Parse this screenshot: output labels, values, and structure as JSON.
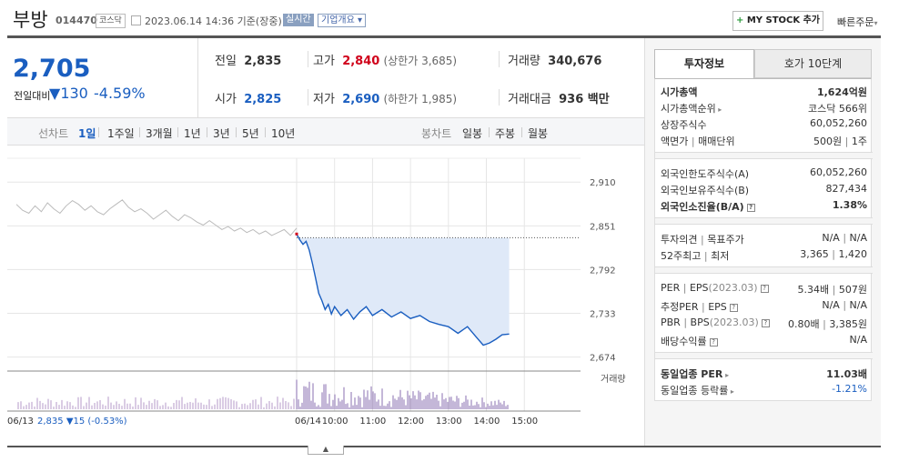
{
  "header": {
    "stock_name": "부방",
    "stock_code": "014470",
    "market_badge": "코스닥",
    "date_text": "2023.06.14 14:36 기준(장중)",
    "realtime_label": "실시간",
    "overview_label": "기업개요",
    "mystock_label": "MY STOCK 추가",
    "quick_order_label": "빠른주문"
  },
  "price": {
    "current": "2,705",
    "change_label": "전일대비",
    "change_value": "130",
    "change_rate": "-4.59%"
  },
  "quote": {
    "prev_close_label": "전일",
    "prev_close": "2,835",
    "high_label": "고가",
    "high": "2,840",
    "upper_limit": "(상한가 3,685)",
    "volume_label": "거래량",
    "volume": "340,676",
    "open_label": "시가",
    "open": "2,825",
    "low_label": "저가",
    "low": "2,690",
    "lower_limit": "(하한가 1,985)",
    "amount_label": "거래대금",
    "amount": "936 백만"
  },
  "range_bar": {
    "line_chart_label": "선차트",
    "ranges": [
      "1일",
      "1주일",
      "3개월",
      "1년",
      "3년",
      "5년",
      "10년"
    ],
    "selected": "1일",
    "candle_label": "봉차트",
    "candles": [
      "일봉",
      "주봉",
      "월봉"
    ]
  },
  "chart_data": {
    "type": "line",
    "title": "",
    "x_axis_labels": [
      "06/13",
      "06/14",
      "10:00",
      "11:00",
      "12:00",
      "13:00",
      "14:00",
      "15:00"
    ],
    "y_ticks": [
      2910,
      2851,
      2792,
      2733,
      2674
    ],
    "ylim": [
      2660,
      2925
    ],
    "prev_close": 2835,
    "previous_day": [
      2880,
      2872,
      2868,
      2878,
      2870,
      2882,
      2874,
      2868,
      2878,
      2885,
      2880,
      2872,
      2878,
      2870,
      2866,
      2874,
      2880,
      2886,
      2876,
      2870,
      2874,
      2868,
      2860,
      2866,
      2872,
      2864,
      2858,
      2866,
      2862,
      2856,
      2852,
      2858,
      2852,
      2846,
      2850,
      2844,
      2848,
      2842,
      2846,
      2840,
      2844,
      2838,
      2842,
      2846,
      2838,
      2848
    ],
    "today": [
      [
        "09:00",
        2840
      ],
      [
        "09:05",
        2832
      ],
      [
        "09:10",
        2826
      ],
      [
        "09:15",
        2830
      ],
      [
        "09:20",
        2818
      ],
      [
        "09:25",
        2800
      ],
      [
        "09:30",
        2780
      ],
      [
        "09:35",
        2760
      ],
      [
        "09:40",
        2750
      ],
      [
        "09:45",
        2738
      ],
      [
        "09:50",
        2745
      ],
      [
        "09:55",
        2732
      ],
      [
        "10:00",
        2742
      ],
      [
        "10:10",
        2730
      ],
      [
        "10:20",
        2738
      ],
      [
        "10:30",
        2725
      ],
      [
        "10:40",
        2735
      ],
      [
        "10:50",
        2742
      ],
      [
        "11:00",
        2730
      ],
      [
        "11:15",
        2738
      ],
      [
        "11:30",
        2728
      ],
      [
        "11:45",
        2735
      ],
      [
        "12:00",
        2726
      ],
      [
        "12:15",
        2730
      ],
      [
        "12:30",
        2722
      ],
      [
        "12:45",
        2718
      ],
      [
        "13:00",
        2715
      ],
      [
        "13:15",
        2706
      ],
      [
        "13:30",
        2715
      ],
      [
        "13:45",
        2700
      ],
      [
        "13:55",
        2690
      ],
      [
        "14:05",
        2693
      ],
      [
        "14:15",
        2698
      ],
      [
        "14:25",
        2704
      ],
      [
        "14:36",
        2705
      ]
    ],
    "volume_label": "거래량",
    "legend_date": "06/13",
    "legend_price": "2,835",
    "legend_change": "15",
    "legend_rate": "(-0.53%)"
  },
  "invest": {
    "tab_invest": "투자정보",
    "tab_hoga": "호가 10단계",
    "market_cap_label": "시가총액",
    "market_cap": "1,624억원",
    "cap_rank_label": "시가총액순위",
    "cap_rank": "코스닥 566위",
    "shares_label": "상장주식수",
    "shares": "60,052,260",
    "face_label": "액면가",
    "trade_unit_label": "매매단위",
    "face_value": "500원",
    "trade_unit": "1주",
    "foreign_limit_label": "외국인한도주식수(A)",
    "foreign_limit": "60,052,260",
    "foreign_hold_label": "외국인보유주식수(B)",
    "foreign_hold": "827,434",
    "foreign_rate_label": "외국인소진율(B/A)",
    "foreign_rate": "1.38%",
    "opinion_label": "투자의견",
    "target_label": "목표주가",
    "opinion": "N/A",
    "target": "N/A",
    "w52_high_label": "52주최고",
    "w52_low_label": "최저",
    "w52_high": "3,365",
    "w52_low": "1,420",
    "per_label": "PER",
    "eps_label": "EPS",
    "eps_year": "(2023.03)",
    "per": "5.34배",
    "eps": "507원",
    "est_per_label": "추정PER",
    "est_eps_label": "EPS",
    "est_per": "N/A",
    "est_eps": "N/A",
    "pbr_label": "PBR",
    "bps_label": "BPS",
    "bps_year": "(2023.03)",
    "pbr": "0.80배",
    "bps": "3,385원",
    "dividend_label": "배당수익률",
    "dividend": "N/A",
    "ind_per_label": "동일업종 PER",
    "ind_per": "11.03배",
    "ind_change_label": "동일업종 등락률",
    "ind_change": "-1.21%"
  },
  "colors": {
    "up": "#d0021b",
    "down": "#1a5ec0",
    "fill": "#dfe9f8"
  }
}
